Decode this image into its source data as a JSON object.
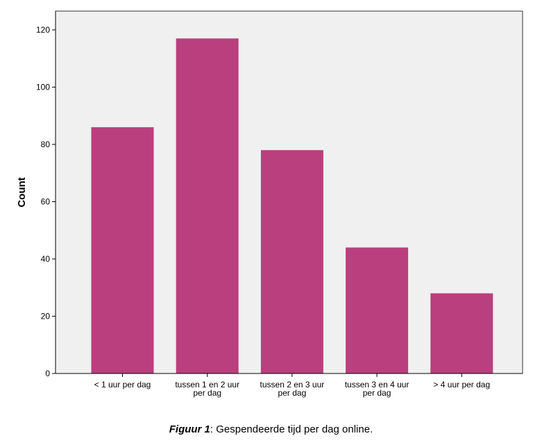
{
  "chart_data": {
    "type": "bar",
    "categories": [
      [
        "< 1 uur per dag"
      ],
      [
        "tussen 1 en 2 uur",
        "per dag"
      ],
      [
        "tussen 2 en 3 uur",
        "per dag"
      ],
      [
        "tussen 3 en 4 uur",
        "per dag"
      ],
      [
        "> 4 uur per dag"
      ]
    ],
    "values": [
      86,
      117,
      78,
      44,
      28
    ],
    "ylabel": "Count",
    "ylim": [
      0,
      125
    ],
    "yticks": [
      0,
      20,
      40,
      60,
      80,
      100,
      120
    ],
    "grid": false,
    "colors": {
      "bar": "#BA3F7E",
      "plot_background": "#F0F0F0",
      "axis": "#000000"
    }
  },
  "caption": {
    "label": "Figuur 1",
    "text": ": Gespendeerde tijd per dag online."
  }
}
